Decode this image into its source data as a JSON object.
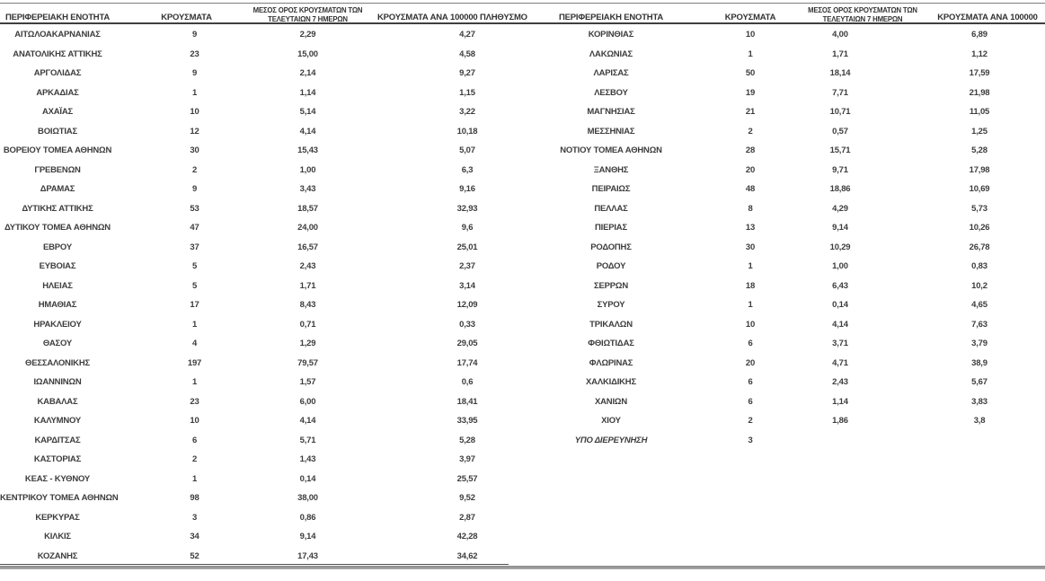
{
  "left_table": {
    "headers": {
      "region": "ΠΕΡΙΦΕΡΕΙΑΚΗ ΕΝΟΤΗΤΑ",
      "cases": "ΚΡΟΥΣΜΑΤΑ",
      "avg7_line1": "ΜΕΣΟΣ ΟΡΟΣ ΚΡΟΥΣΜΑΤΩΝ ΤΩΝ",
      "avg7_line2": "ΤΕΛΕΥΤΑΙΩΝ 7 ΗΜΕΡΩΝ",
      "per100k": "ΚΡΟΥΣΜΑΤΑ ΑΝΑ 100000 ΠΛΗΘΥΣΜΟ"
    },
    "rows": [
      {
        "region": "ΑΙΤΩΛΟΑΚΑΡΝΑΝΙΑΣ",
        "cases": "9",
        "avg7": "2,29",
        "per100k": "4,27"
      },
      {
        "region": "ΑΝΑΤΟΛΙΚΗΣ ΑΤΤΙΚΗΣ",
        "cases": "23",
        "avg7": "15,00",
        "per100k": "4,58"
      },
      {
        "region": "ΑΡΓΟΛΙΔΑΣ",
        "cases": "9",
        "avg7": "2,14",
        "per100k": "9,27"
      },
      {
        "region": "ΑΡΚΑΔΙΑΣ",
        "cases": "1",
        "avg7": "1,14",
        "per100k": "1,15"
      },
      {
        "region": "ΑΧΑΪΑΣ",
        "cases": "10",
        "avg7": "5,14",
        "per100k": "3,22"
      },
      {
        "region": "ΒΟΙΩΤΙΑΣ",
        "cases": "12",
        "avg7": "4,14",
        "per100k": "10,18"
      },
      {
        "region": "ΒΟΡΕΙΟΥ ΤΟΜΕΑ ΑΘΗΝΩΝ",
        "cases": "30",
        "avg7": "15,43",
        "per100k": "5,07"
      },
      {
        "region": "ΓΡΕΒΕΝΩΝ",
        "cases": "2",
        "avg7": "1,00",
        "per100k": "6,3"
      },
      {
        "region": "ΔΡΑΜΑΣ",
        "cases": "9",
        "avg7": "3,43",
        "per100k": "9,16"
      },
      {
        "region": "ΔΥΤΙΚΗΣ ΑΤΤΙΚΗΣ",
        "cases": "53",
        "avg7": "18,57",
        "per100k": "32,93"
      },
      {
        "region": "ΔΥΤΙΚΟΥ ΤΟΜΕΑ ΑΘΗΝΩΝ",
        "cases": "47",
        "avg7": "24,00",
        "per100k": "9,6"
      },
      {
        "region": "ΕΒΡΟΥ",
        "cases": "37",
        "avg7": "16,57",
        "per100k": "25,01"
      },
      {
        "region": "ΕΥΒΟΙΑΣ",
        "cases": "5",
        "avg7": "2,43",
        "per100k": "2,37"
      },
      {
        "region": "ΗΛΕΙΑΣ",
        "cases": "5",
        "avg7": "1,71",
        "per100k": "3,14"
      },
      {
        "region": "ΗΜΑΘΙΑΣ",
        "cases": "17",
        "avg7": "8,43",
        "per100k": "12,09"
      },
      {
        "region": "ΗΡΑΚΛΕΙΟΥ",
        "cases": "1",
        "avg7": "0,71",
        "per100k": "0,33"
      },
      {
        "region": "ΘΑΣΟΥ",
        "cases": "4",
        "avg7": "1,29",
        "per100k": "29,05"
      },
      {
        "region": "ΘΕΣΣΑΛΟΝΙΚΗΣ",
        "cases": "197",
        "avg7": "79,57",
        "per100k": "17,74"
      },
      {
        "region": "ΙΩΑΝΝΙΝΩΝ",
        "cases": "1",
        "avg7": "1,57",
        "per100k": "0,6"
      },
      {
        "region": "ΚΑΒΑΛΑΣ",
        "cases": "23",
        "avg7": "6,00",
        "per100k": "18,41"
      },
      {
        "region": "ΚΑΛΥΜΝΟΥ",
        "cases": "10",
        "avg7": "4,14",
        "per100k": "33,95"
      },
      {
        "region": "ΚΑΡΔΙΤΣΑΣ",
        "cases": "6",
        "avg7": "5,71",
        "per100k": "5,28"
      },
      {
        "region": "ΚΑΣΤΟΡΙΑΣ",
        "cases": "2",
        "avg7": "1,43",
        "per100k": "3,97"
      },
      {
        "region": "ΚΕΑΣ - ΚΥΘΝΟΥ",
        "cases": "1",
        "avg7": "0,14",
        "per100k": "25,57"
      },
      {
        "region": "ΚΕΝΤΡΙΚΟΥ ΤΟΜΕΑ ΑΘΗΝΩΝ",
        "cases": "98",
        "avg7": "38,00",
        "per100k": "9,52"
      },
      {
        "region": "ΚΕΡΚΥΡΑΣ",
        "cases": "3",
        "avg7": "0,86",
        "per100k": "2,87"
      },
      {
        "region": "ΚΙΛΚΙΣ",
        "cases": "34",
        "avg7": "9,14",
        "per100k": "42,28"
      },
      {
        "region": "ΚΟΖΑΝΗΣ",
        "cases": "52",
        "avg7": "17,43",
        "per100k": "34,62"
      }
    ]
  },
  "right_table": {
    "headers": {
      "region": "ΠΕΡΙΦΕΡΕΙΑΚΗ ΕΝΟΤΗΤΑ",
      "cases": "ΚΡΟΥΣΜΑΤΑ",
      "avg7_line1": "ΜΕΣΟΣ ΟΡΟΣ ΚΡΟΥΣΜΑΤΩΝ ΤΩΝ",
      "avg7_line2": "ΤΕΛΕΥΤΑΙΩΝ 7 ΗΜΕΡΩΝ",
      "per100k": "ΚΡΟΥΣΜΑΤΑ ΑΝΑ 100000"
    },
    "rows": [
      {
        "region": "ΚΟΡΙΝΘΙΑΣ",
        "cases": "10",
        "avg7": "4,00",
        "per100k": "6,89"
      },
      {
        "region": "ΛΑΚΩΝΙΑΣ",
        "cases": "1",
        "avg7": "1,71",
        "per100k": "1,12"
      },
      {
        "region": "ΛΑΡΙΣΑΣ",
        "cases": "50",
        "avg7": "18,14",
        "per100k": "17,59"
      },
      {
        "region": "ΛΕΣΒΟΥ",
        "cases": "19",
        "avg7": "7,71",
        "per100k": "21,98"
      },
      {
        "region": "ΜΑΓΝΗΣΙΑΣ",
        "cases": "21",
        "avg7": "10,71",
        "per100k": "11,05"
      },
      {
        "region": "ΜΕΣΣΗΝΙΑΣ",
        "cases": "2",
        "avg7": "0,57",
        "per100k": "1,25"
      },
      {
        "region": "ΝΟΤΙΟΥ ΤΟΜΕΑ ΑΘΗΝΩΝ",
        "cases": "28",
        "avg7": "15,71",
        "per100k": "5,28"
      },
      {
        "region": "ΞΑΝΘΗΣ",
        "cases": "20",
        "avg7": "9,71",
        "per100k": "17,98"
      },
      {
        "region": "ΠΕΙΡΑΙΩΣ",
        "cases": "48",
        "avg7": "18,86",
        "per100k": "10,69"
      },
      {
        "region": "ΠΕΛΛΑΣ",
        "cases": "8",
        "avg7": "4,29",
        "per100k": "5,73"
      },
      {
        "region": "ΠΙΕΡΙΑΣ",
        "cases": "13",
        "avg7": "9,14",
        "per100k": "10,26"
      },
      {
        "region": "ΡΟΔΟΠΗΣ",
        "cases": "30",
        "avg7": "10,29",
        "per100k": "26,78"
      },
      {
        "region": "ΡΟΔΟΥ",
        "cases": "1",
        "avg7": "1,00",
        "per100k": "0,83"
      },
      {
        "region": "ΣΕΡΡΩΝ",
        "cases": "18",
        "avg7": "6,43",
        "per100k": "10,2"
      },
      {
        "region": "ΣΥΡΟΥ",
        "cases": "1",
        "avg7": "0,14",
        "per100k": "4,65"
      },
      {
        "region": "ΤΡΙΚΑΛΩΝ",
        "cases": "10",
        "avg7": "4,14",
        "per100k": "7,63"
      },
      {
        "region": "ΦΘΙΩΤΙΔΑΣ",
        "cases": "6",
        "avg7": "3,71",
        "per100k": "3,79"
      },
      {
        "region": "ΦΛΩΡΙΝΑΣ",
        "cases": "20",
        "avg7": "4,71",
        "per100k": "38,9"
      },
      {
        "region": "ΧΑΛΚΙΔΙΚΗΣ",
        "cases": "6",
        "avg7": "2,43",
        "per100k": "5,67"
      },
      {
        "region": "ΧΑΝΙΩΝ",
        "cases": "6",
        "avg7": "1,14",
        "per100k": "3,83"
      },
      {
        "region": "ΧΙΟΥ",
        "cases": "2",
        "avg7": "1,86",
        "per100k": "3,8"
      },
      {
        "region": "ΥΠΟ ΔΙΕΡΕΥΝΗΣΗ",
        "cases": "3",
        "avg7": "",
        "per100k": "",
        "italic": true
      }
    ]
  },
  "colors": {
    "text": "#3d3d3d",
    "rule_top": "#7d7d7d",
    "rule_header": "#3f3f3f",
    "bottom_bar": "#9a9a9a",
    "background": "#ffffff"
  }
}
